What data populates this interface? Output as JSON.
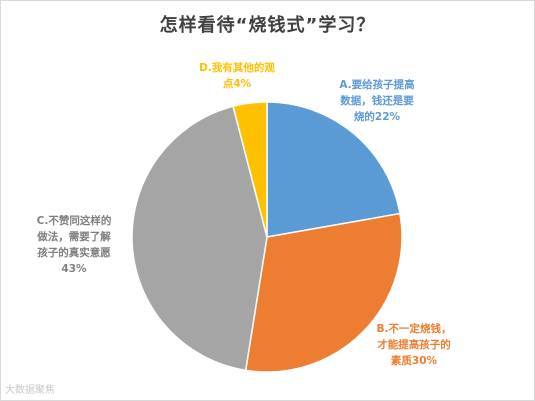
{
  "chart_data": {
    "type": "pie",
    "title": "怎样看待“烧钱式”学习？",
    "slices": [
      {
        "key": "A",
        "label_lines": [
          "A.要给孩子提高",
          "数据，钱还是要",
          "烧的22%"
        ],
        "value": 22,
        "color": "#5b9bd5",
        "text_color": "#5b9bd5"
      },
      {
        "key": "B",
        "label_lines": [
          "B.不一定烧钱，",
          "才能提高孩子的",
          "素质30%"
        ],
        "value": 30,
        "color": "#ed7d31",
        "text_color": "#ed7d31"
      },
      {
        "key": "C",
        "label_lines": [
          "C.不赞同这样的",
          "做法，需要了解",
          "孩子的真实意愿",
          "43%"
        ],
        "value": 43,
        "color": "#a5a5a5",
        "text_color": "#7f7f7f"
      },
      {
        "key": "D",
        "label_lines": [
          "D.我有其他的观",
          "点4%"
        ],
        "value": 4,
        "color": "#ffc000",
        "text_color": "#ffc000"
      }
    ]
  },
  "watermark": "大数据聚焦"
}
